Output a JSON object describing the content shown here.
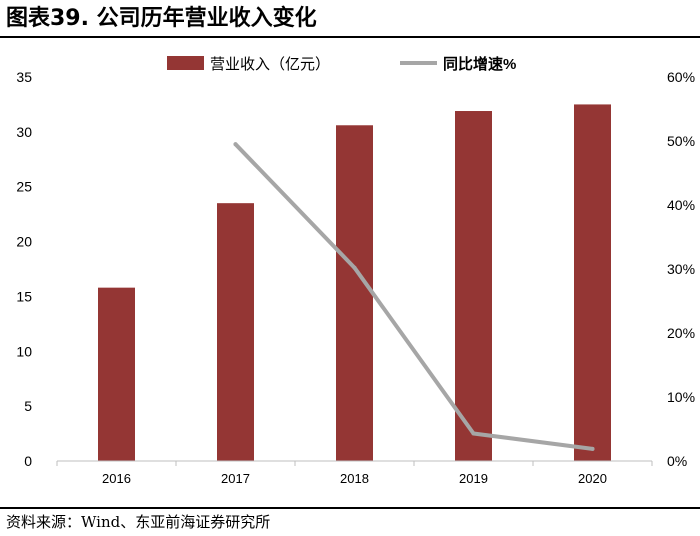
{
  "figure": {
    "title": "图表39. 公司历年营业收入变化",
    "source": "资料来源：Wind、东亚前海证券研究所"
  },
  "colors": {
    "bar": "#943634",
    "line": "#a6a6a6",
    "axis": "#bfbfbf"
  },
  "chart_data": {
    "type": "bar",
    "title": "",
    "categories": [
      "2016",
      "2017",
      "2018",
      "2019",
      "2020"
    ],
    "series": [
      {
        "name": "营业收入（亿元）",
        "type": "bar",
        "axis": "left",
        "values": [
          15.8,
          23.5,
          30.6,
          31.9,
          32.5
        ]
      },
      {
        "name": "同比增速%",
        "type": "line",
        "axis": "right",
        "values": [
          null,
          49.5,
          30.2,
          4.3,
          1.9
        ]
      }
    ],
    "y_left": {
      "ylim": [
        0,
        35
      ],
      "ticks": [
        "0",
        "5",
        "10",
        "15",
        "20",
        "25",
        "30",
        "35"
      ]
    },
    "y_right": {
      "ylim": [
        0,
        60
      ],
      "ticks": [
        "0%",
        "10%",
        "20%",
        "30%",
        "40%",
        "50%",
        "60%"
      ]
    },
    "grid": false,
    "legend": "top"
  }
}
